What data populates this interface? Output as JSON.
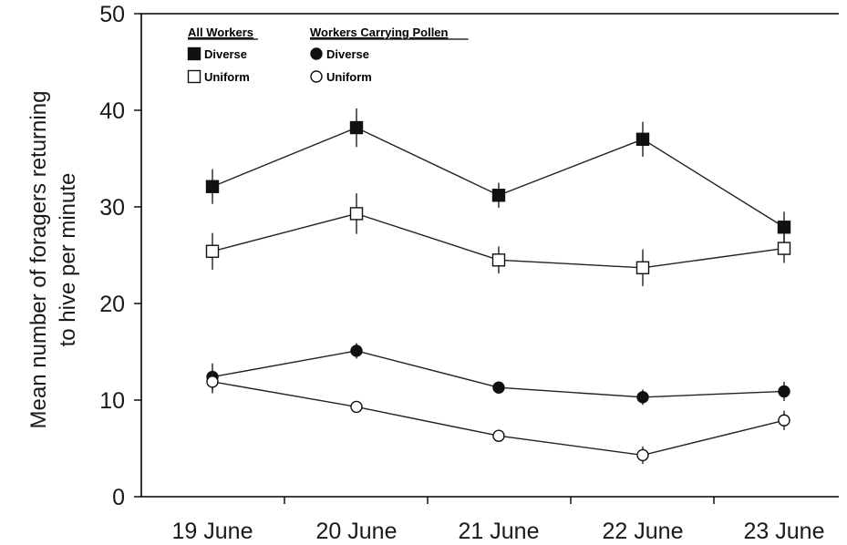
{
  "chart_data": {
    "type": "line",
    "title": "",
    "xlabel": "",
    "ylabel_lines": [
      "Mean number of foragers returning",
      "to hive per minute"
    ],
    "categories": [
      "19 June",
      "20 June",
      "21 June",
      "22 June",
      "23 June"
    ],
    "ylim": [
      0,
      50
    ],
    "yticks": [
      0,
      10,
      20,
      30,
      40,
      50
    ],
    "grid": false,
    "legend": {
      "placement": "top-left",
      "groups": [
        {
          "heading": "All Workers",
          "entries": [
            "Diverse",
            "Uniform"
          ]
        },
        {
          "heading": "Workers Carrying Pollen",
          "entries": [
            "Diverse",
            "Uniform"
          ]
        }
      ]
    },
    "series": [
      {
        "group": "All Workers",
        "name": "Diverse",
        "marker": "square",
        "fill": "#111111",
        "values": [
          32.1,
          38.2,
          31.2,
          37.0,
          27.9
        ],
        "errors": [
          1.8,
          2.0,
          1.3,
          1.8,
          1.6
        ]
      },
      {
        "group": "All Workers",
        "name": "Uniform",
        "marker": "square",
        "fill": "#ffffff",
        "values": [
          25.4,
          29.3,
          24.5,
          23.7,
          25.7
        ],
        "errors": [
          1.9,
          2.1,
          1.4,
          1.9,
          1.5
        ]
      },
      {
        "group": "Workers Carrying Pollen",
        "name": "Diverse",
        "marker": "circle",
        "fill": "#111111",
        "values": [
          12.4,
          15.1,
          11.3,
          10.3,
          10.9
        ],
        "errors": [
          1.4,
          0.8,
          0.6,
          0.8,
          1.0
        ]
      },
      {
        "group": "Workers Carrying Pollen",
        "name": "Uniform",
        "marker": "circle",
        "fill": "#ffffff",
        "values": [
          11.9,
          9.3,
          6.3,
          4.3,
          7.9
        ],
        "errors": [
          1.2,
          0.6,
          0.5,
          0.9,
          1.0
        ]
      }
    ]
  }
}
